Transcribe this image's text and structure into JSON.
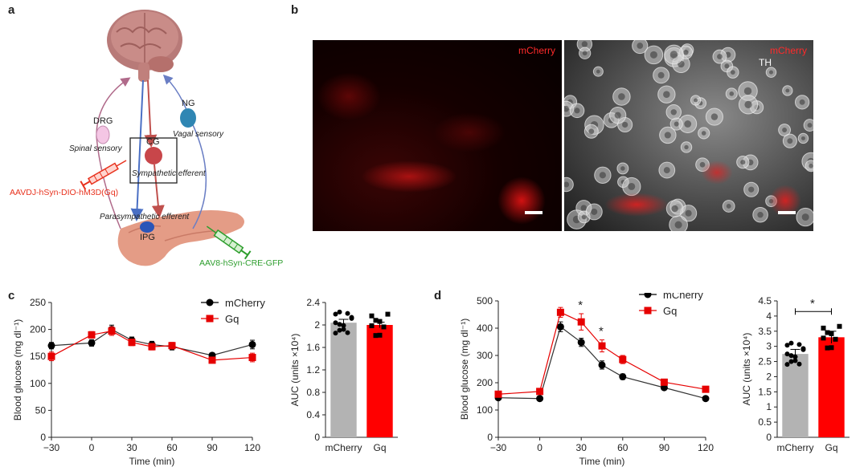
{
  "panels": {
    "a": "a",
    "b": "b",
    "c": "c",
    "d": "d"
  },
  "schematic": {
    "ng": "NG",
    "vagal": "Vagal sensory",
    "drg": "DRG",
    "spinal": "Spinal sensory",
    "cg": "CG",
    "symp": "Sympathetic efferent",
    "aavdj": "AAVDJ-hSyn-DIO-hM3D(Gq)",
    "parasymp": "Parasympathetic efferent",
    "ipg": "IPG",
    "aav8": "AAV8-hSyn-CRE-GFP",
    "colors": {
      "red": "#e8321e",
      "green": "#2e9e2e",
      "pink": "#f4c6e4",
      "blue": "#2a6fb0",
      "cg_red": "#c8464a"
    }
  },
  "micro": {
    "left_label": "mCherry",
    "right_label1": "mCherry",
    "right_label2": "TH"
  },
  "chart_data": [
    {
      "type": "line",
      "xlabel": "Time (min)",
      "ylabel": "Blood glucose (mg dl⁻¹)",
      "xlim": [
        -30,
        120
      ],
      "ylim": [
        0,
        250
      ],
      "xticks": [
        -30,
        0,
        30,
        60,
        90,
        120
      ],
      "yticks": [
        0,
        50,
        100,
        150,
        200,
        250
      ],
      "series": [
        {
          "name": "mCherry",
          "color": "#000000",
          "marker": "circle",
          "x": [
            -30,
            0,
            15,
            30,
            45,
            60,
            90,
            120
          ],
          "y": [
            170,
            175,
            200,
            180,
            172,
            168,
            152,
            172
          ],
          "err": [
            6,
            6,
            8,
            6,
            6,
            6,
            4,
            8
          ]
        },
        {
          "name": "Gq",
          "color": "#e60000",
          "marker": "square",
          "x": [
            -30,
            0,
            15,
            30,
            45,
            60,
            90,
            120
          ],
          "y": [
            150,
            190,
            197,
            176,
            168,
            170,
            143,
            148
          ],
          "err": [
            8,
            6,
            8,
            6,
            6,
            6,
            4,
            8
          ]
        }
      ],
      "legend": "top-right"
    },
    {
      "type": "bar",
      "ylabel": "AUC (units ×10⁴)",
      "categories": [
        "mCherry",
        "Gq"
      ],
      "values": [
        2.04,
        2.0
      ],
      "err": [
        0.06,
        0.05
      ],
      "colors": [
        "#b3b3b3",
        "#ff0000"
      ],
      "ylim": [
        0,
        2.4
      ],
      "yticks": [
        "0",
        "0.4",
        "0.8",
        "1.2",
        "1.6",
        "2",
        "2.4"
      ]
    },
    {
      "type": "line",
      "xlabel": "Time (min)",
      "ylabel": "Blood glucose (mg dl⁻¹)",
      "xlim": [
        -30,
        120
      ],
      "ylim": [
        0,
        500
      ],
      "xticks": [
        -30,
        0,
        30,
        60,
        90,
        120
      ],
      "yticks": [
        0,
        100,
        200,
        300,
        400,
        500
      ],
      "series": [
        {
          "name": "mCherry",
          "color": "#000000",
          "marker": "circle",
          "x": [
            -30,
            0,
            15,
            30,
            45,
            60,
            90,
            120
          ],
          "y": [
            145,
            142,
            405,
            348,
            265,
            222,
            182,
            142
          ],
          "err": [
            8,
            8,
            18,
            15,
            15,
            10,
            6,
            6
          ]
        },
        {
          "name": "Gq",
          "color": "#e60000",
          "marker": "square",
          "x": [
            -30,
            0,
            15,
            30,
            45,
            60,
            90,
            120
          ],
          "y": [
            158,
            168,
            458,
            423,
            335,
            285,
            202,
            176
          ],
          "err": [
            8,
            8,
            18,
            30,
            22,
            15,
            8,
            6
          ]
        }
      ],
      "annotations": [
        "*",
        "*"
      ],
      "legend": "top-right"
    },
    {
      "type": "bar",
      "ylabel": "AUC (units ×10⁴)",
      "categories": [
        "mCherry",
        "Gq"
      ],
      "values": [
        2.75,
        3.3
      ],
      "err": [
        0.15,
        0.2
      ],
      "colors": [
        "#b3b3b3",
        "#ff0000"
      ],
      "ylim": [
        0,
        4.5
      ],
      "yticks": [
        "0",
        "0.5",
        "1",
        "1.5",
        "2",
        "2.5",
        "3",
        "3.5",
        "4",
        "4.5"
      ],
      "annotations": [
        "*"
      ]
    }
  ]
}
